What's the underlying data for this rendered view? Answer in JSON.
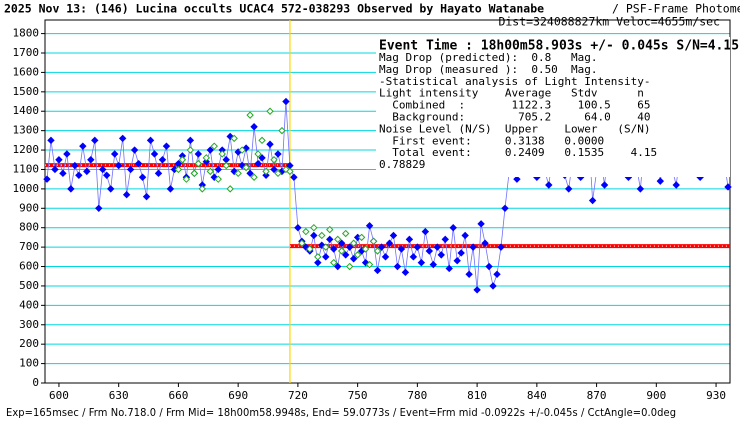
{
  "chart_data": {
    "type": "scatter",
    "title": "2025 Nov 13: (146) Lucina occults UCAC4 572-038293 Observed by Hayato Watanabe",
    "subtitle": "/ PSF-Frame Photometry /",
    "subtitle2": "Dist=324088827km Veloc=4655m/sec",
    "event_time": "Event Time : 18h00m58.903s +/- 0.045s S/N=4.15",
    "stats": [
      "Mag Drop (predicted):  0.8   Mag.",
      "Mag Drop (measured ):  0.50  Mag.",
      "-Statistical analysis of Light Intensity-",
      "Light intensity    Average   Stdv      n",
      "  Combined  :       1122.3    100.5    65",
      "  Background:        705.2     64.0    40",
      "Noise Level (N/S)  Upper    Lower   (S/N)",
      "  First event:     0.3138   0.0000",
      "  Total event:     0.2409   0.1535    4.15",
      "0.78829"
    ],
    "footer": "Exp=165msec / Frm No.718.0 / Frm Mid= 18h00m58.9948s, End= 59.0773s / Event=Frm mid -0.0922s +/-0.045s / CctAngle=0.0deg",
    "xlim": [
      593,
      937
    ],
    "ylim": [
      0,
      1870
    ],
    "xticks": [
      600,
      630,
      660,
      690,
      720,
      750,
      780,
      810,
      840,
      870,
      900,
      930
    ],
    "yticks": [
      0,
      100,
      200,
      300,
      400,
      500,
      600,
      700,
      800,
      900,
      1000,
      1100,
      1200,
      1300,
      1400,
      1500,
      1600,
      1700,
      1800
    ],
    "grid": true,
    "event_x": 716,
    "levels": [
      {
        "value": 1122.3,
        "x": [
          593,
          716
        ],
        "color": "#ff0000"
      },
      {
        "value": 705.2,
        "x": [
          716,
          937
        ],
        "color": "#ff0000"
      }
    ],
    "series": [
      {
        "color": "#0000ff",
        "marker": "filled",
        "x": [
          594,
          596,
          598,
          600,
          602,
          604,
          606,
          608,
          610,
          612,
          614,
          616,
          618,
          620,
          622,
          624,
          626,
          628,
          630,
          632,
          634,
          636,
          638,
          640,
          642,
          644,
          646,
          648,
          650,
          652,
          654,
          656,
          658,
          660,
          662,
          664,
          666,
          668,
          670,
          672,
          674,
          676,
          678,
          680,
          682,
          684,
          686,
          688,
          690,
          692,
          694,
          696,
          698,
          700,
          702,
          704,
          706,
          708,
          710,
          712,
          714,
          716,
          718,
          720,
          722,
          724,
          726,
          728,
          730,
          732,
          734,
          736,
          738,
          740,
          742,
          744,
          746,
          748,
          750,
          752,
          754,
          756,
          758,
          760,
          762,
          764,
          766,
          768,
          770,
          772,
          774,
          776,
          778,
          780,
          782,
          784,
          786,
          788,
          790,
          792,
          794,
          796,
          798,
          800,
          802,
          804,
          806,
          808,
          810,
          812,
          814,
          816,
          818,
          820,
          822,
          824,
          826,
          828,
          830,
          832,
          834,
          836,
          838,
          840,
          842,
          844,
          846,
          848,
          850,
          852,
          854,
          856,
          858,
          860,
          862,
          864,
          866,
          868,
          870,
          872,
          874,
          876,
          878,
          880,
          882,
          884,
          886,
          888,
          890,
          892,
          894,
          896,
          898,
          900,
          902,
          904,
          906,
          908,
          910,
          912,
          914,
          916,
          918,
          920,
          922,
          924,
          926,
          928,
          930,
          932,
          934,
          936
        ],
        "values": [
          1050,
          1250,
          1100,
          1150,
          1080,
          1180,
          1000,
          1120,
          1070,
          1220,
          1090,
          1150,
          1250,
          900,
          1100,
          1070,
          1000,
          1180,
          1120,
          1260,
          970,
          1100,
          1200,
          1130,
          1060,
          960,
          1250,
          1180,
          1080,
          1150,
          1220,
          1000,
          1100,
          1130,
          1170,
          1060,
          1250,
          1080,
          1180,
          1020,
          1140,
          1200,
          1060,
          1100,
          1200,
          1150,
          1270,
          1090,
          1190,
          1120,
          1210,
          1080,
          1320,
          1130,
          1160,
          1070,
          1230,
          1100,
          1180,
          1090,
          1450,
          1120,
          1060,
          800,
          730,
          700,
          680,
          760,
          620,
          710,
          650,
          740,
          690,
          600,
          720,
          660,
          700,
          640,
          750,
          680,
          620,
          810,
          730,
          580,
          700,
          650,
          720,
          760,
          600,
          690,
          570,
          740,
          650,
          700,
          620,
          780,
          680,
          610,
          700,
          660,
          740,
          590,
          800,
          630,
          670,
          760,
          560,
          700,
          480,
          820,
          720,
          600,
          500,
          560,
          700,
          900,
          1080,
          1160,
          1050,
          1200,
          1120,
          1100,
          1220,
          1060,
          1150,
          1090,
          1020,
          1180,
          1110,
          1250,
          1070,
          1000,
          1150,
          1200,
          1060,
          1120,
          1280,
          940,
          1090,
          1170,
          1020,
          1210,
          1110,
          1080,
          1250,
          1130,
          1060,
          1190,
          1120,
          1000,
          1230,
          1150,
          1080,
          1200,
          1040,
          1170,
          1450,
          1100,
          1020,
          1180,
          1250,
          1090,
          1380,
          1150,
          1060,
          1220,
          1290,
          1170,
          1100,
          1200,
          1150,
          1010
        ]
      },
      {
        "color": "#22aa22",
        "marker": "open",
        "x": [
          660,
          662,
          664,
          666,
          668,
          670,
          672,
          674,
          676,
          678,
          680,
          682,
          684,
          686,
          688,
          690,
          692,
          694,
          696,
          698,
          700,
          702,
          704,
          706,
          708,
          710,
          712,
          714,
          716,
          722,
          724,
          726,
          728,
          730,
          732,
          734,
          736,
          738,
          740,
          742,
          744,
          746,
          748,
          750,
          752,
          754,
          756,
          758,
          760
        ],
        "values": [
          1100,
          1150,
          1050,
          1200,
          1080,
          1130,
          1000,
          1160,
          1090,
          1220,
          1050,
          1180,
          1120,
          1000,
          1260,
          1080,
          1200,
          1110,
          1380,
          1060,
          1180,
          1250,
          1090,
          1400,
          1150,
          1080,
          1300,
          1100,
          1090,
          720,
          780,
          690,
          800,
          650,
          760,
          700,
          790,
          620,
          740,
          680,
          770,
          600,
          720,
          660,
          750,
          690,
          610,
          730,
          680
        ]
      }
    ]
  }
}
